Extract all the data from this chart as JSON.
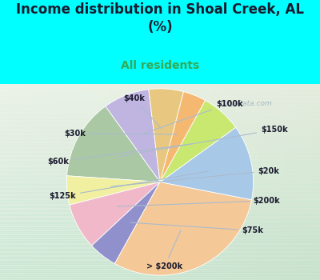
{
  "title": "Income distribution in Shoal Creek, AL\n(%)",
  "subtitle": "All residents",
  "subtitle_color": "#33aa55",
  "outer_bg": "#00FFFF",
  "chart_bg_start": "#e8f8f0",
  "chart_bg_end": "#b0ddc8",
  "labels": [
    "$100k",
    "$150k",
    "$20k",
    "$200k",
    "$75k",
    "> $200k",
    "$125k",
    "$60k",
    "$30k",
    "$40k"
  ],
  "sizes": [
    8,
    14,
    5,
    8,
    5,
    30,
    13,
    7,
    4,
    6
  ],
  "colors": [
    "#c0b4e0",
    "#aac8a4",
    "#f0f0a0",
    "#f0b8c8",
    "#9090cc",
    "#f5c898",
    "#a8c8e8",
    "#c8e870",
    "#f5b870",
    "#e8c880"
  ],
  "startangle": 97,
  "watermark": "  City-Data.com"
}
